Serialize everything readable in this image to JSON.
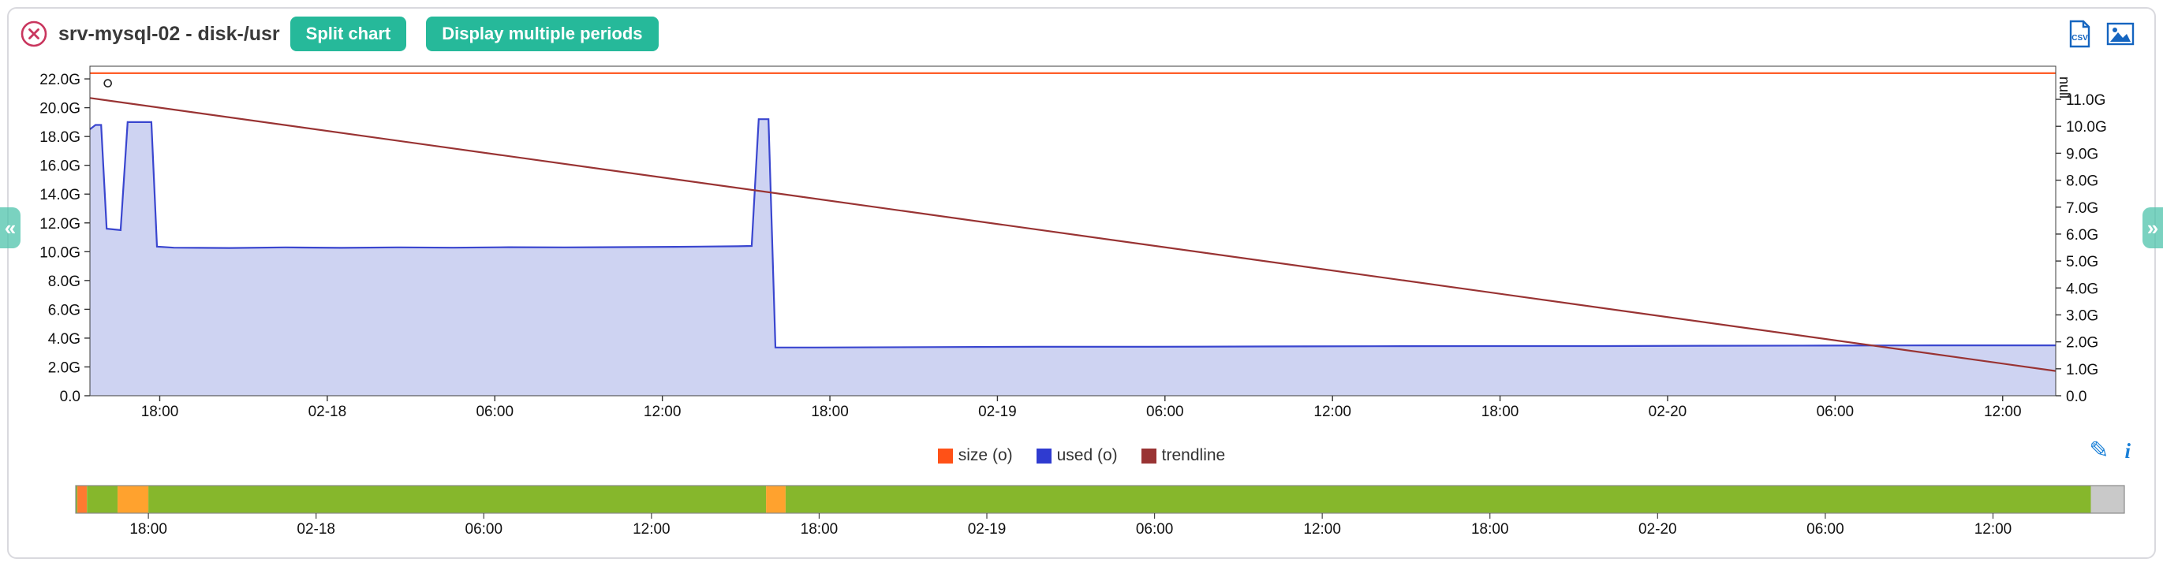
{
  "header": {
    "title": "srv-mysql-02 - disk-/usr",
    "buttons": [
      {
        "label": "Split chart"
      },
      {
        "label": "Display multiple periods"
      }
    ],
    "export": {
      "csv_label": "CSV"
    },
    "accent_color": "#26b99a",
    "close_color": "#c9365e",
    "icon_color": "#1565c0"
  },
  "nav": {
    "prev_label": "«",
    "next_label": "»"
  },
  "chart_data": {
    "type": "area",
    "title": "srv-mysql-02 - disk-/usr",
    "x_axis": {
      "unit": "time",
      "lim_hours": [
        0,
        70.4
      ],
      "ticks": [
        {
          "h": 2.5,
          "label": "18:00"
        },
        {
          "h": 8.5,
          "label": "02-18"
        },
        {
          "h": 14.5,
          "label": "06:00"
        },
        {
          "h": 20.5,
          "label": "12:00"
        },
        {
          "h": 26.5,
          "label": "18:00"
        },
        {
          "h": 32.5,
          "label": "02-19"
        },
        {
          "h": 38.5,
          "label": "06:00"
        },
        {
          "h": 44.5,
          "label": "12:00"
        },
        {
          "h": 50.5,
          "label": "18:00"
        },
        {
          "h": 56.5,
          "label": "02-20"
        },
        {
          "h": 62.5,
          "label": "06:00"
        },
        {
          "h": 68.5,
          "label": "12:00"
        }
      ]
    },
    "left_axis": {
      "lim": [
        0,
        22.88
      ],
      "ticks": [
        {
          "v": 0,
          "label": "0.0"
        },
        {
          "v": 2,
          "label": "2.0G"
        },
        {
          "v": 4,
          "label": "4.0G"
        },
        {
          "v": 6,
          "label": "6.0G"
        },
        {
          "v": 8,
          "label": "8.0G"
        },
        {
          "v": 10,
          "label": "10.0G"
        },
        {
          "v": 12,
          "label": "12.0G"
        },
        {
          "v": 14,
          "label": "14.0G"
        },
        {
          "v": 16,
          "label": "16.0G"
        },
        {
          "v": 18,
          "label": "18.0G"
        },
        {
          "v": 20,
          "label": "20.0G"
        },
        {
          "v": 22,
          "label": "22.0G"
        }
      ]
    },
    "right_axis": {
      "lim": [
        0,
        12.23
      ],
      "top_label": "null",
      "ticks": [
        {
          "v": 0,
          "label": "0.0"
        },
        {
          "v": 1,
          "label": "1.0G"
        },
        {
          "v": 2,
          "label": "2.0G"
        },
        {
          "v": 3,
          "label": "3.0G"
        },
        {
          "v": 4,
          "label": "4.0G"
        },
        {
          "v": 5,
          "label": "5.0G"
        },
        {
          "v": 6,
          "label": "6.0G"
        },
        {
          "v": 7,
          "label": "7.0G"
        },
        {
          "v": 8,
          "label": "8.0G"
        },
        {
          "v": 9,
          "label": "9.0G"
        },
        {
          "v": 10,
          "label": "10.0G"
        },
        {
          "v": 11,
          "label": "11.0G"
        }
      ]
    },
    "series": [
      {
        "name": "size (o)",
        "type": "line",
        "axis": "left",
        "color": "#ff5117",
        "points": [
          [
            0,
            22.4
          ],
          [
            70.4,
            22.4
          ]
        ]
      },
      {
        "name": "used (o)",
        "type": "area",
        "axis": "left",
        "color": "#3a46cf",
        "fill": "#ced3f2",
        "points": [
          [
            0,
            18.5
          ],
          [
            0.2,
            18.8
          ],
          [
            0.4,
            18.8
          ],
          [
            0.6,
            11.6
          ],
          [
            1.1,
            11.5
          ],
          [
            1.35,
            19.0
          ],
          [
            2.2,
            19.0
          ],
          [
            2.4,
            10.35
          ],
          [
            3,
            10.28
          ],
          [
            5,
            10.26
          ],
          [
            7,
            10.3
          ],
          [
            9,
            10.27
          ],
          [
            11,
            10.3
          ],
          [
            13,
            10.28
          ],
          [
            15,
            10.31
          ],
          [
            17,
            10.3
          ],
          [
            19,
            10.32
          ],
          [
            21,
            10.34
          ],
          [
            23.2,
            10.38
          ],
          [
            23.7,
            10.4
          ],
          [
            23.95,
            19.2
          ],
          [
            24.3,
            19.2
          ],
          [
            24.55,
            3.35
          ],
          [
            26,
            3.35
          ],
          [
            30,
            3.38
          ],
          [
            34,
            3.4
          ],
          [
            38,
            3.4
          ],
          [
            42,
            3.42
          ],
          [
            46,
            3.44
          ],
          [
            50,
            3.45
          ],
          [
            54,
            3.45
          ],
          [
            58,
            3.47
          ],
          [
            62,
            3.48
          ],
          [
            66,
            3.5
          ],
          [
            70.4,
            3.5
          ]
        ]
      },
      {
        "name": "trendline",
        "type": "line",
        "axis": "right",
        "color": "#993333",
        "points": [
          [
            0,
            11.05
          ],
          [
            70.4,
            0.92
          ]
        ]
      }
    ],
    "marker": {
      "shape": "circle",
      "hour": 0.64,
      "value": 21.7
    }
  },
  "legend": {
    "items": [
      {
        "label": "size (o)",
        "color": "#ff5117"
      },
      {
        "label": "used (o)",
        "color": "#2f3bd0"
      },
      {
        "label": "trendline",
        "color": "#993333"
      }
    ]
  },
  "actions": {
    "edit_glyph": "✎",
    "info_glyph": "i"
  },
  "minimap": {
    "range_hours": [
      -0.1,
      73.2
    ],
    "segments": [
      {
        "from": -0.1,
        "to": -0.04,
        "color": "#86b72c"
      },
      {
        "from": -0.04,
        "to": 0.3,
        "color": "#ff7a30"
      },
      {
        "from": 0.3,
        "to": 1.4,
        "color": "#86b72c"
      },
      {
        "from": 1.4,
        "to": 2.5,
        "color": "#ffa22e"
      },
      {
        "from": 2.5,
        "to": 24.6,
        "color": "#86b72c"
      },
      {
        "from": 24.6,
        "to": 25.3,
        "color": "#ffa22e"
      },
      {
        "from": 25.3,
        "to": 72.0,
        "color": "#86b72c"
      },
      {
        "from": 72.0,
        "to": 73.2,
        "color": "#c9c9c9"
      }
    ]
  }
}
